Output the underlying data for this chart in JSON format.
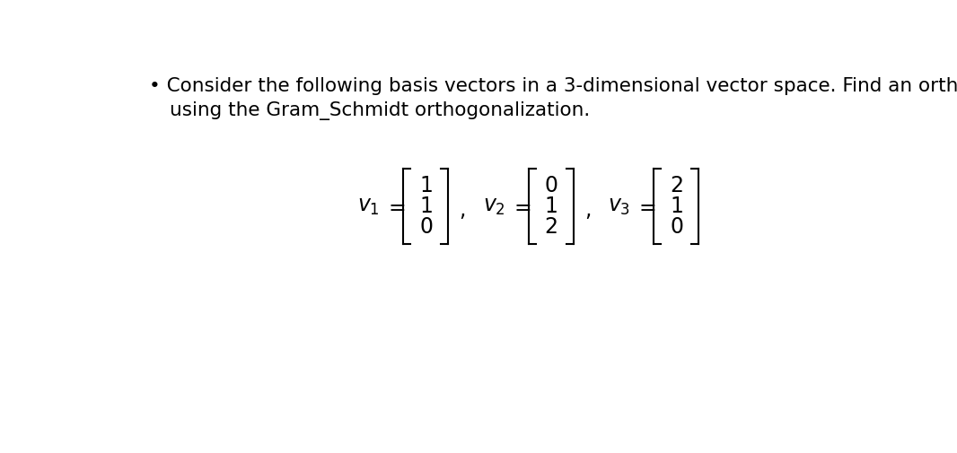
{
  "background_color": "#ffffff",
  "bullet_text_line1": "Consider the following basis vectors in a 3-dimensional vector space. Find an orthogonal set",
  "bullet_text_line2": "using the Gram_Schmidt orthogonalization.",
  "bullet_symbol": "•",
  "v1": [
    "1",
    "1",
    "0"
  ],
  "v2": [
    "0",
    "1",
    "2"
  ],
  "v3": [
    "2",
    "1",
    "0"
  ],
  "v1_label": "v_1",
  "v2_label": "v_2",
  "v3_label": "v_3",
  "text_color": "#000000",
  "font_size_bullet": 15.5,
  "font_size_math": 17,
  "fig_width": 10.66,
  "fig_height": 5.05,
  "dpi": 100
}
